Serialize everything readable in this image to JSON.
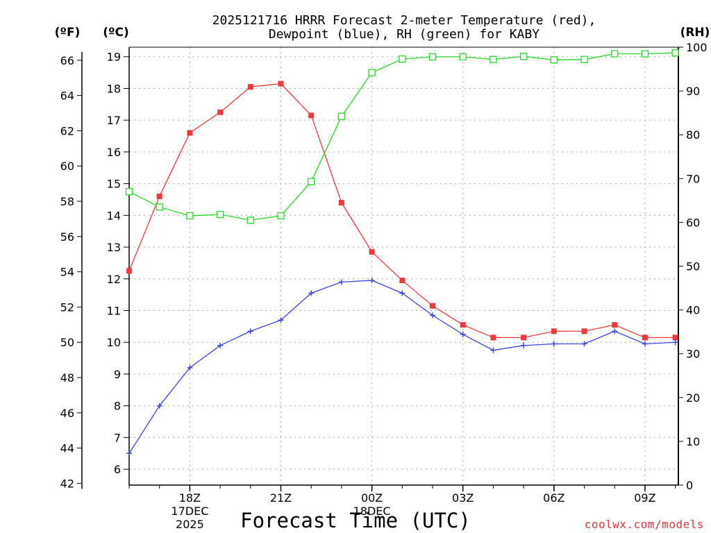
{
  "chart_data": {
    "type": "line",
    "title_lines": [
      "2025121716 HRRR Forecast 2-meter Temperature (red),",
      "Dewpoint (blue), RH (green) for KABY"
    ],
    "unit_labels": {
      "fahrenheit": "(ºF)",
      "celsius": "(ºC)",
      "rh": "(RH)"
    },
    "xlabel": "Forecast Time (UTC)",
    "credit": "coolwx.com/models",
    "x_hours": [
      16,
      17,
      18,
      19,
      20,
      21,
      22,
      23,
      24,
      25,
      26,
      27,
      28,
      29,
      30,
      31,
      32,
      33,
      34
    ],
    "xlim": [
      16,
      34.1
    ],
    "x_ticks": [
      {
        "hour": 18,
        "lines": [
          "18Z",
          "17DEC",
          "2025"
        ]
      },
      {
        "hour": 21,
        "lines": [
          "21Z"
        ]
      },
      {
        "hour": 24,
        "lines": [
          "00Z",
          "18DEC"
        ]
      },
      {
        "hour": 27,
        "lines": [
          "03Z"
        ]
      },
      {
        "hour": 30,
        "lines": [
          "06Z"
        ]
      },
      {
        "hour": 33,
        "lines": [
          "09Z"
        ]
      }
    ],
    "celsius_axis": {
      "ylim": [
        5.5,
        19.3
      ],
      "ticks": [
        6,
        7,
        8,
        9,
        10,
        11,
        12,
        13,
        14,
        15,
        16,
        17,
        18,
        19
      ]
    },
    "fahrenheit_ticks": [
      42,
      44,
      46,
      48,
      50,
      52,
      54,
      56,
      58,
      60,
      62,
      64,
      66
    ],
    "rh_axis": {
      "ylim": [
        0,
        100
      ],
      "ticks": [
        0,
        10,
        20,
        30,
        40,
        50,
        60,
        70,
        80,
        90,
        100
      ]
    },
    "series": [
      {
        "name": "2-meter Temperature",
        "axis": "celsius",
        "color": "#f0393d",
        "marker": "filled-square",
        "values": [
          12.25,
          14.6,
          16.6,
          17.25,
          18.05,
          18.15,
          17.15,
          14.4,
          12.85,
          11.95,
          11.15,
          10.55,
          10.15,
          10.15,
          10.35,
          10.35,
          10.55,
          10.15,
          10.15
        ]
      },
      {
        "name": "Dewpoint",
        "axis": "celsius",
        "color": "#3a45e0",
        "marker": "plus",
        "values": [
          6.5,
          8.0,
          9.2,
          9.9,
          10.35,
          10.7,
          11.55,
          11.9,
          11.95,
          11.55,
          10.85,
          10.25,
          9.75,
          9.9,
          9.95,
          9.95,
          10.35,
          9.95,
          10.0
        ]
      },
      {
        "name": "RH",
        "axis": "rh",
        "color": "#28d62a",
        "marker": "open-square",
        "values": [
          67,
          63.5,
          61.5,
          61.8,
          60.5,
          61.5,
          69.3,
          84.2,
          94.2,
          97.3,
          97.8,
          97.8,
          97.2,
          97.9,
          97.1,
          97.2,
          98.5,
          98.5,
          98.7
        ]
      }
    ]
  }
}
